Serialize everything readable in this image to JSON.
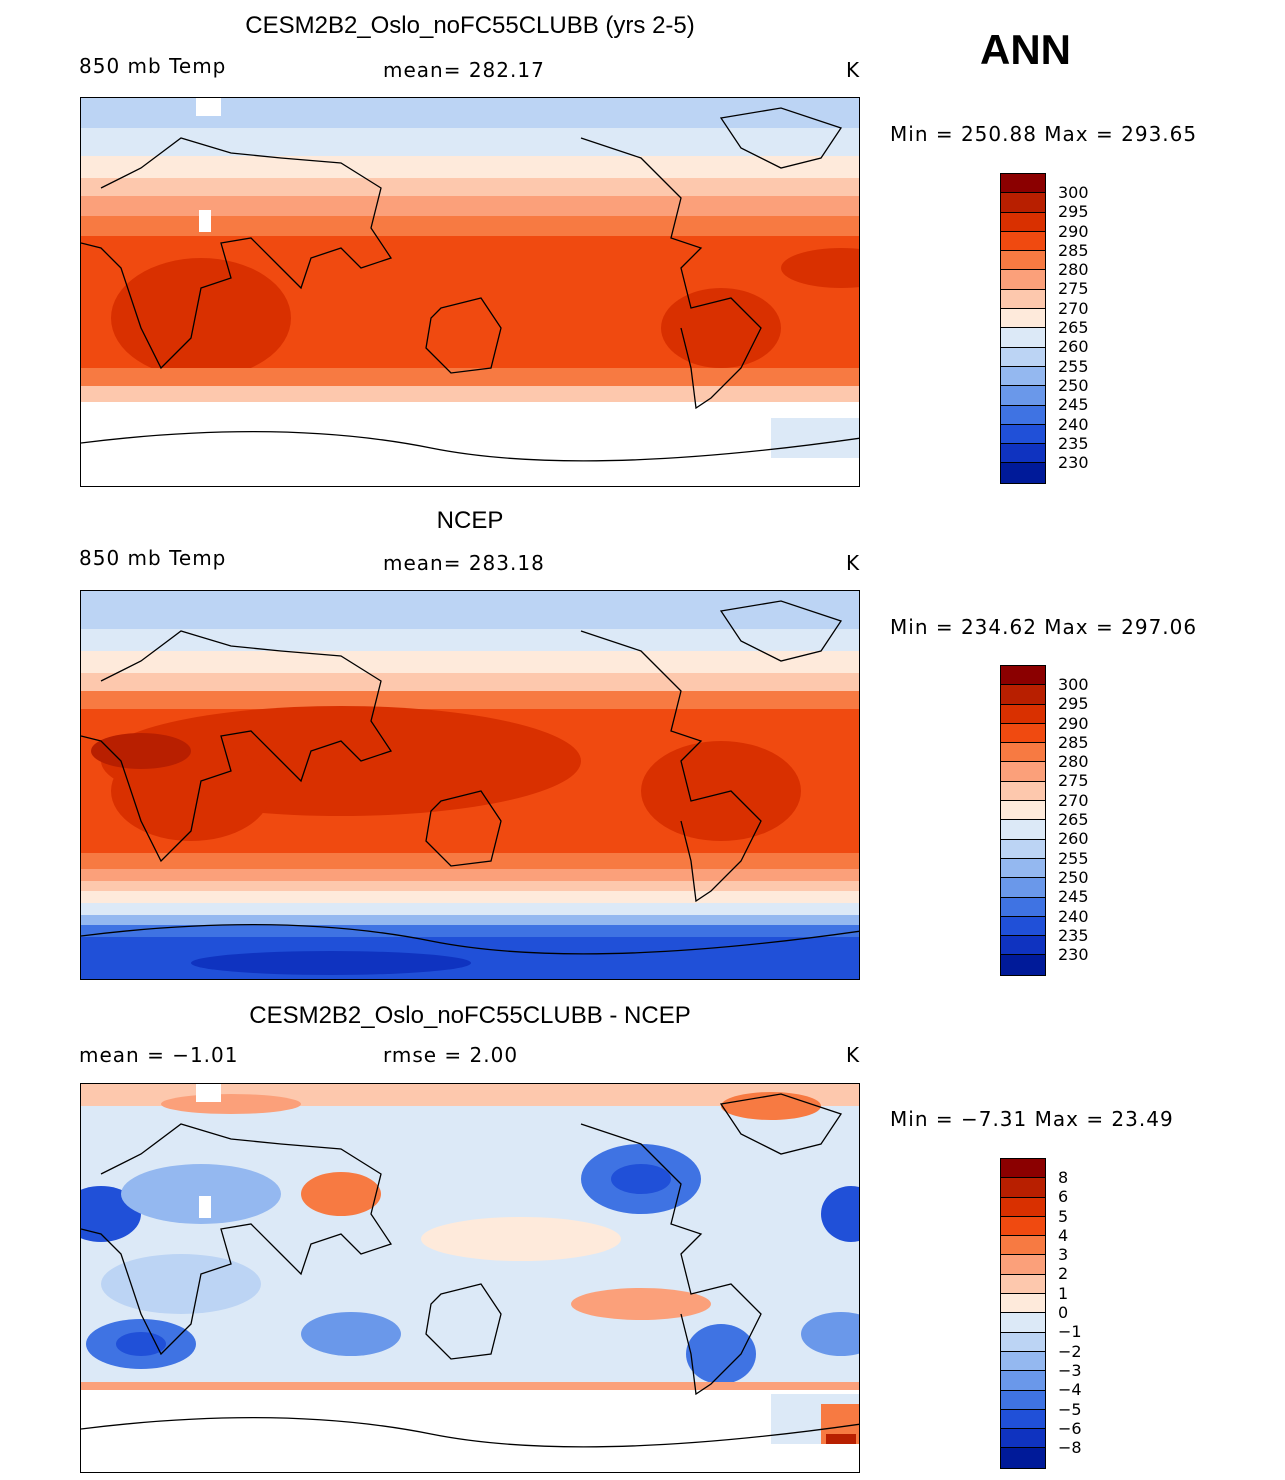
{
  "annual_label": "ANN",
  "panels": [
    {
      "title": "CESM2B2_Oslo_noFC55CLUBB (yrs 2-5)",
      "variable": "850 mb Temp",
      "stat": "mean= 282.17",
      "units": "K",
      "minmax": "Min  =  250.88  Max  =  293.65",
      "colorbar_labels": [
        "300",
        "295",
        "290",
        "285",
        "280",
        "275",
        "270",
        "265",
        "260",
        "255",
        "250",
        "245",
        "240",
        "235",
        "230"
      ]
    },
    {
      "title": "NCEP",
      "variable": "850 mb Temp",
      "stat": "mean= 283.18",
      "units": "K",
      "minmax": "Min  =  234.62  Max  =  297.06",
      "colorbar_labels": [
        "300",
        "295",
        "290",
        "285",
        "280",
        "275",
        "270",
        "265",
        "260",
        "255",
        "250",
        "245",
        "240",
        "235",
        "230"
      ]
    },
    {
      "title": "CESM2B2_Oslo_noFC55CLUBB - NCEP",
      "variable": "mean  =   −1.01",
      "stat": "rmse  =    2.00",
      "units": "K",
      "minmax": "Min  =   −7.31  Max  =   23.49",
      "colorbar_labels": [
        "8",
        "6",
        "5",
        "4",
        "3",
        "2",
        "1",
        "0",
        "−1",
        "−2",
        "−3",
        "−4",
        "−5",
        "−6",
        "−8"
      ]
    }
  ],
  "colors": {
    "abs_scale": [
      "#8b0000",
      "#b81f00",
      "#d93000",
      "#f04a10",
      "#f77a42",
      "#fba07a",
      "#fdc8ad",
      "#feeadb",
      "#dce9f7",
      "#bcd4f4",
      "#94b8f0",
      "#6a98ea",
      "#3f73e3",
      "#2050d8",
      "#0f33c0",
      "#001a99"
    ],
    "diff_scale": [
      "#8b0000",
      "#b81f00",
      "#d93000",
      "#f04a10",
      "#f77a42",
      "#fba07a",
      "#fdc8ad",
      "#feeadb",
      "#dce9f7",
      "#bcd4f4",
      "#94b8f0",
      "#6a98ea",
      "#3f73e3",
      "#2050d8",
      "#0f33c0",
      "#001a99"
    ]
  }
}
